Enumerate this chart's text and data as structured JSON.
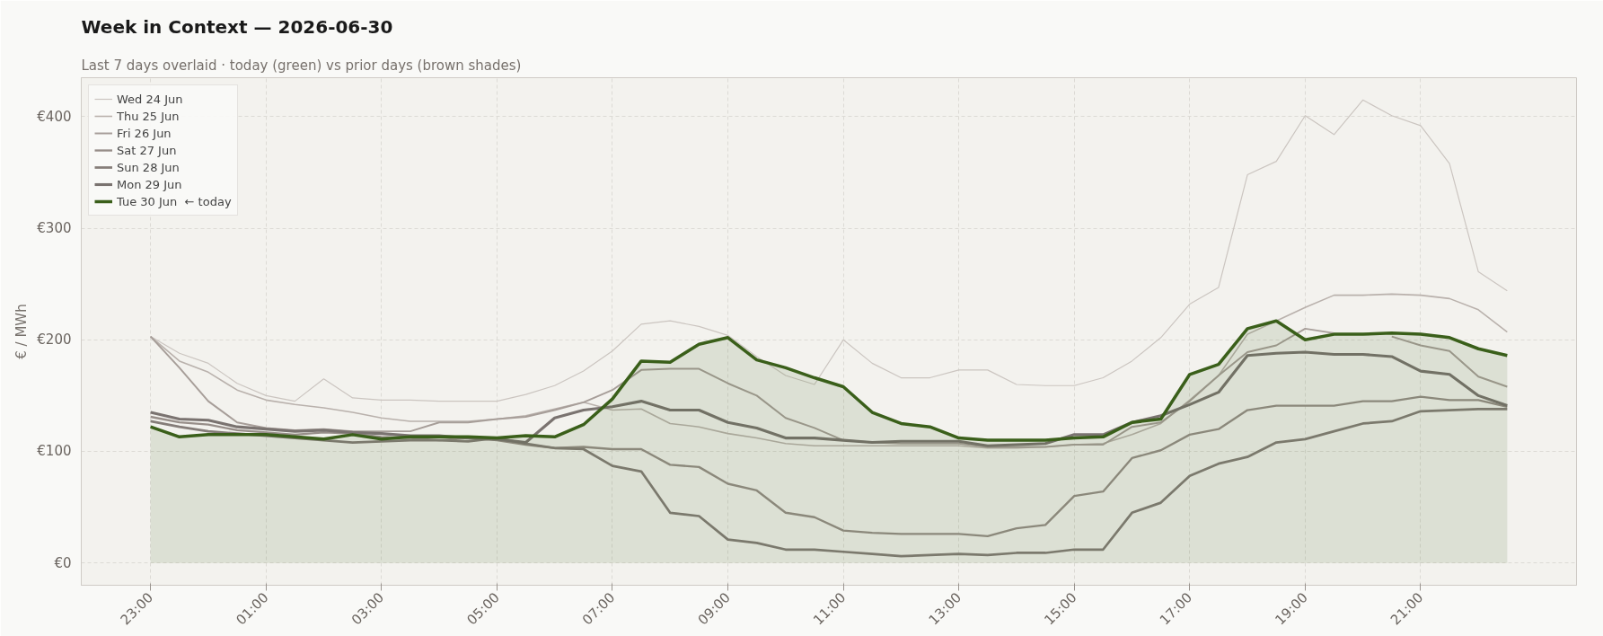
{
  "chart_data": {
    "type": "line",
    "title": "Week in Context — 2026-06-30",
    "subtitle": "Last 7 days overlaid  ·  today (green) vs prior days (brown shades)",
    "ylabel": "€ / MWh",
    "categories": [
      "23:00",
      null,
      null,
      null,
      "01:00",
      null,
      null,
      null,
      "03:00",
      null,
      null,
      null,
      "05:00",
      null,
      null,
      null,
      "07:00",
      null,
      null,
      null,
      "09:00",
      null,
      null,
      null,
      "11:00",
      null,
      null,
      null,
      "13:00",
      null,
      null,
      null,
      "15:00",
      null,
      null,
      null,
      "17:00",
      null,
      null,
      null,
      "19:00",
      null,
      null,
      null,
      "21:00",
      null,
      null,
      null
    ],
    "ylim": [
      -20,
      435
    ],
    "yticks": [
      {
        "value": 0,
        "label": "€0"
      },
      {
        "value": 100,
        "label": "€100"
      },
      {
        "value": 200,
        "label": "€200"
      },
      {
        "value": 300,
        "label": "€300"
      },
      {
        "value": 400,
        "label": "€400"
      }
    ],
    "grid": true,
    "legend": "top left",
    "series": [
      {
        "name": "Wed 24 Jun",
        "color": "#cbc5c0",
        "values": [
          203,
          188,
          179,
          161,
          150,
          145,
          165,
          148,
          146,
          146,
          145,
          145,
          145,
          151,
          159,
          172,
          190,
          214,
          217,
          212,
          204,
          185,
          168,
          160,
          200,
          179,
          166,
          166,
          173,
          173,
          160,
          159,
          159,
          166,
          181,
          202,
          232,
          247,
          348,
          360,
          401,
          384,
          415,
          401,
          392,
          358,
          261,
          244
        ]
      },
      {
        "name": "Thu 25 Jun",
        "color": "#b9b1ac",
        "values": [
          203,
          181,
          171,
          155,
          146,
          142,
          139,
          135,
          130,
          127,
          127,
          127,
          129,
          132,
          138,
          144,
          137,
          138,
          125,
          122,
          116,
          112,
          107,
          105,
          105,
          105,
          105,
          105,
          105,
          103,
          103,
          104,
          106,
          107,
          115,
          125,
          146,
          168,
          205,
          217,
          229,
          240,
          240,
          241,
          240,
          237,
          227,
          207
        ]
      },
      {
        "name": "Fri 26 Jun",
        "color": "#a79e99",
        "values": [
          203,
          175,
          145,
          126,
          121,
          119,
          120,
          118,
          118,
          118,
          126,
          126,
          129,
          131,
          137,
          144,
          155,
          173,
          174,
          174,
          161,
          150,
          130,
          121,
          110,
          108,
          107,
          107,
          107,
          104,
          104,
          104,
          106,
          106,
          122,
          126,
          145,
          168,
          189,
          195,
          210,
          206,
          null,
          203,
          195,
          190,
          167,
          158
        ]
      },
      {
        "name": "Sat 27 Jun",
        "color": "#978e89",
        "values": [
          131,
          126,
          124,
          119,
          117,
          115,
          117,
          116,
          113,
          112,
          110,
          112,
          110,
          106,
          103,
          104,
          102,
          102,
          88,
          86,
          71,
          65,
          45,
          41,
          29,
          27,
          26,
          26,
          26,
          24,
          31,
          34,
          60,
          64,
          94,
          101,
          115,
          120,
          137,
          141,
          141,
          141,
          145,
          145,
          149,
          146,
          146,
          140
        ]
      },
      {
        "name": "Sun 28 Jun",
        "color": "#857d79",
        "values": [
          127,
          122,
          118,
          116,
          114,
          112,
          110,
          108,
          109,
          110,
          110,
          109,
          112,
          107,
          103,
          102,
          87,
          82,
          45,
          42,
          21,
          18,
          12,
          12,
          10,
          8,
          6,
          7,
          8,
          7,
          9,
          9,
          12,
          12,
          45,
          54,
          78,
          89,
          95,
          108,
          111,
          118,
          125,
          127,
          136,
          137,
          138,
          138
        ]
      },
      {
        "name": "Mon 29 Jun",
        "color": "#7a7370",
        "values": [
          135,
          129,
          128,
          122,
          120,
          118,
          119,
          117,
          116,
          114,
          114,
          112,
          111,
          108,
          130,
          137,
          140,
          145,
          137,
          137,
          126,
          121,
          112,
          112,
          110,
          108,
          109,
          109,
          109,
          105,
          106,
          107,
          115,
          115,
          126,
          132,
          142,
          153,
          186,
          188,
          189,
          187,
          187,
          185,
          172,
          169,
          150,
          141
        ]
      },
      {
        "name": "Tue 30 Jun  ← today",
        "color": "#3a5f1a",
        "type": "area",
        "values": [
          122,
          113,
          115,
          115,
          115,
          113,
          111,
          115,
          111,
          113,
          113,
          113,
          112,
          114,
          113,
          124,
          147,
          181,
          180,
          196,
          202,
          182,
          175,
          166,
          158,
          135,
          125,
          122,
          112,
          110,
          110,
          110,
          112,
          113,
          126,
          129,
          169,
          178,
          210,
          217,
          200,
          205,
          205,
          206,
          205,
          202,
          192,
          186
        ]
      }
    ]
  }
}
